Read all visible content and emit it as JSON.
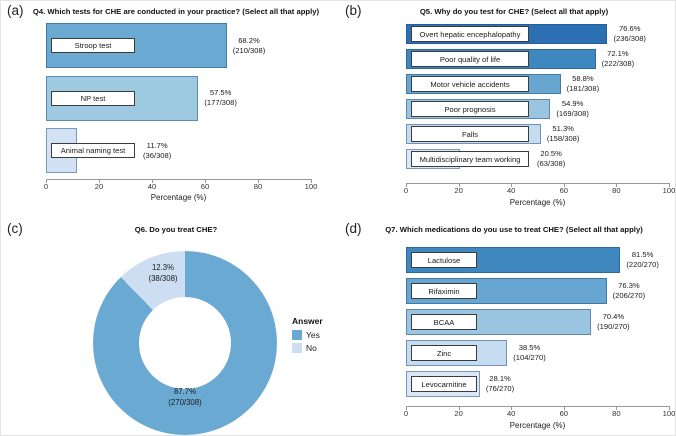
{
  "panel_letters": {
    "a": "(a)",
    "b": "(b)",
    "c": "(c)",
    "d": "(d)"
  },
  "palette": {
    "blue_1_darkest": "#2c6fb2",
    "blue_2": "#3f87bf",
    "blue_3": "#66a6d1",
    "blue_4": "#99c5e0",
    "blue_5": "#c5dbf0",
    "blue_6_lightest": "#dae7f6",
    "donut_yes": "#6aaad2",
    "donut_no": "#cdddf2"
  },
  "chart_data": [
    {
      "panel": "a",
      "type": "bar",
      "orientation": "horizontal",
      "title": "Q4. Which tests for CHE are conducted in your practice? (Select all that apply)",
      "categories": [
        "Stroop test",
        "NP test",
        "Animal naming test"
      ],
      "values": [
        68.2,
        57.5,
        11.7
      ],
      "counts": [
        210,
        177,
        36
      ],
      "total_n": 308,
      "percent_labels": [
        "68.2%",
        "57.5%",
        "11.7%"
      ],
      "count_labels": [
        "(210/308)",
        "(177/308)",
        "(36/308)"
      ],
      "bar_colors": [
        "#6aaad2",
        "#9ecae1",
        "#d2e2f4"
      ],
      "xlabel": "Percentage (%)",
      "xlim": [
        0,
        100
      ],
      "xticks": [
        0,
        20,
        40,
        60,
        80,
        100
      ],
      "grid": false
    },
    {
      "panel": "b",
      "type": "bar",
      "orientation": "horizontal",
      "title": "Q5. Why do you test for CHE? (Select all that apply)",
      "categories": [
        "Overt hepatic encephalopathy",
        "Poor quality of life",
        "Motor vehicle accidents",
        "Poor prognosis",
        "Falls",
        "Multidisciplinary team working"
      ],
      "values": [
        76.6,
        72.1,
        58.8,
        54.9,
        51.3,
        20.5
      ],
      "counts": [
        236,
        222,
        181,
        169,
        158,
        63
      ],
      "total_n": 308,
      "percent_labels": [
        "76.6%",
        "72.1%",
        "58.8%",
        "54.9%",
        "51.3%",
        "20.5%"
      ],
      "count_labels": [
        "(236/308)",
        "(222/308)",
        "(181/308)",
        "(169/308)",
        "(158/308)",
        "(63/308)"
      ],
      "bar_colors": [
        "#2c6fb2",
        "#3f87bf",
        "#66a6d1",
        "#99c5e0",
        "#c5dbf0",
        "#dae7f6"
      ],
      "xlabel": "Percentage (%)",
      "xlim": [
        0,
        100
      ],
      "xticks": [
        0,
        20,
        40,
        60,
        80,
        100
      ],
      "grid": false
    },
    {
      "panel": "c",
      "type": "donut",
      "title": "Q6. Do you treat CHE?",
      "legend_title": "Answer",
      "legend_position": "right",
      "total_n": 308,
      "slices": [
        {
          "label": "Yes",
          "pct": 87.7,
          "count": 270,
          "pct_label": "87.7%",
          "count_label": "(270/308)",
          "color": "#6aaad2"
        },
        {
          "label": "No",
          "pct": 12.3,
          "count": 38,
          "pct_label": "12.3%",
          "count_label": "(38/308)",
          "color": "#cdddf2"
        }
      ]
    },
    {
      "panel": "d",
      "type": "bar",
      "orientation": "horizontal",
      "title": "Q7. Which medications do you use to treat CHE? (Select all that apply)",
      "categories": [
        "Lactulose",
        "Rifaximin",
        "BCAA",
        "Zinc",
        "Levocarnitine"
      ],
      "values": [
        81.5,
        76.3,
        70.4,
        38.5,
        28.1
      ],
      "counts": [
        220,
        206,
        190,
        104,
        76
      ],
      "total_n": 270,
      "percent_labels": [
        "81.5%",
        "76.3%",
        "70.4%",
        "38.5%",
        "28.1%"
      ],
      "count_labels": [
        "(220/270)",
        "(206/270)",
        "(190/270)",
        "(104/270)",
        "(76/270)"
      ],
      "bar_colors": [
        "#3f87bf",
        "#66a6d1",
        "#99c5e0",
        "#c5dbf0",
        "#dae7f6"
      ],
      "xlabel": "Percentage (%)",
      "xlim": [
        0,
        100
      ],
      "xticks": [
        0,
        20,
        40,
        60,
        80,
        100
      ],
      "grid": false
    }
  ]
}
